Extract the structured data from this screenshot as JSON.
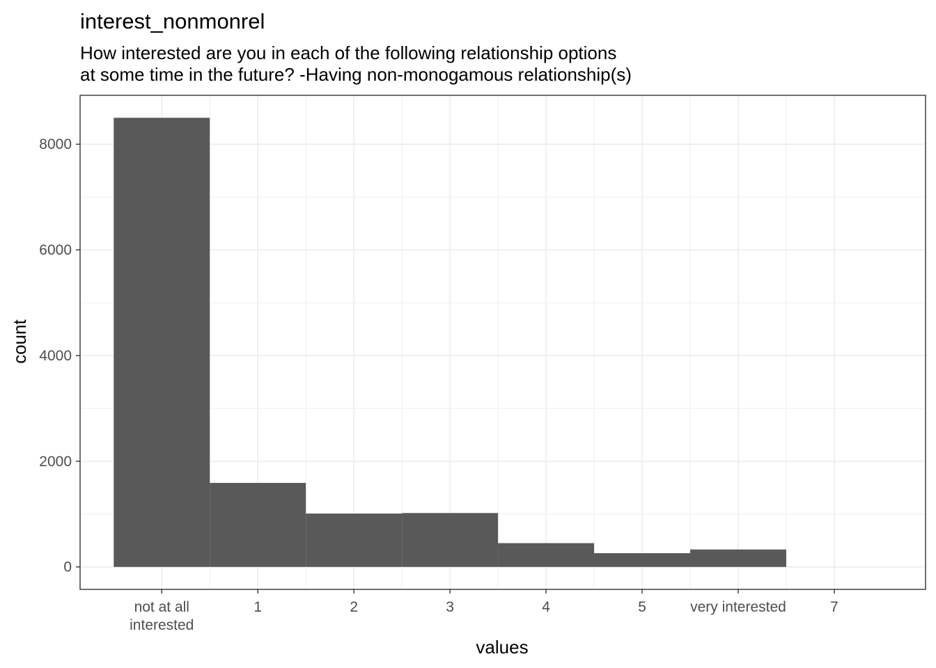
{
  "chart_data": {
    "type": "bar",
    "title": "interest_nonmonrel",
    "subtitle_lines": [
      "How interested are you in each of the following relationship options",
      "at some time in the future? -Having non-monogamous relationship(s)"
    ],
    "xlabel": "values",
    "ylabel": "count",
    "x_tick_labels": [
      [
        "not at all",
        "interested"
      ],
      [
        "1"
      ],
      [
        "2"
      ],
      [
        "3"
      ],
      [
        "4"
      ],
      [
        "5"
      ],
      [
        "very interested"
      ],
      [
        "7"
      ]
    ],
    "x_ticks": [
      0,
      1,
      2,
      3,
      4,
      5,
      6,
      7
    ],
    "bars": [
      {
        "x": 0,
        "value": 8500
      },
      {
        "x": 1,
        "value": 1590
      },
      {
        "x": 2,
        "value": 1010
      },
      {
        "x": 3,
        "value": 1020
      },
      {
        "x": 4,
        "value": 450
      },
      {
        "x": 5,
        "value": 260
      },
      {
        "x": 6,
        "value": 330
      }
    ],
    "xlim": [
      -0.85,
      7.95
    ],
    "ylim": [
      -425,
      8925
    ],
    "y_ticks": [
      0,
      2000,
      4000,
      6000,
      8000
    ],
    "grid": true,
    "bar_color": "#595959",
    "grid_color": "#ebebeb",
    "panel_border_color": "#333333"
  }
}
